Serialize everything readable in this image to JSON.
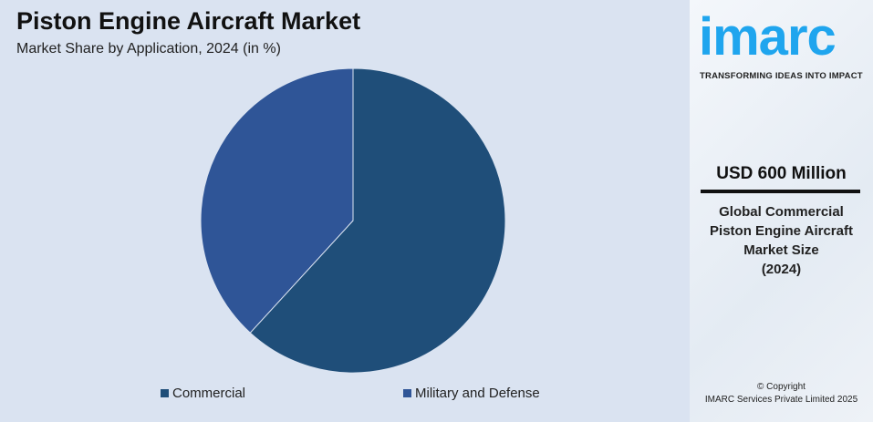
{
  "header": {
    "title": "Piston Engine Aircraft Market",
    "subtitle": "Market Share by Application, 2024 (in %)"
  },
  "chart_data": {
    "type": "pie",
    "title": "Piston Engine Aircraft Market",
    "subtitle": "Market Share by Application, 2024 (in %)",
    "categories": [
      "Commercial",
      "Military and Defense"
    ],
    "values": [
      61.8,
      38.2
    ],
    "colors": [
      "#1f4e79",
      "#2f5597"
    ],
    "legend_position": "bottom"
  },
  "sidebar": {
    "logo": "imarc",
    "tagline": "TRANSFORMING IDEAS INTO IMPACT",
    "market_value": "USD 600 Million",
    "description": [
      "Global Commercial",
      "Piston Engine Aircraft",
      "Market Size",
      "(2024)"
    ],
    "copyright": "© Copyright",
    "company": "IMARC Services Private Limited 2025"
  }
}
